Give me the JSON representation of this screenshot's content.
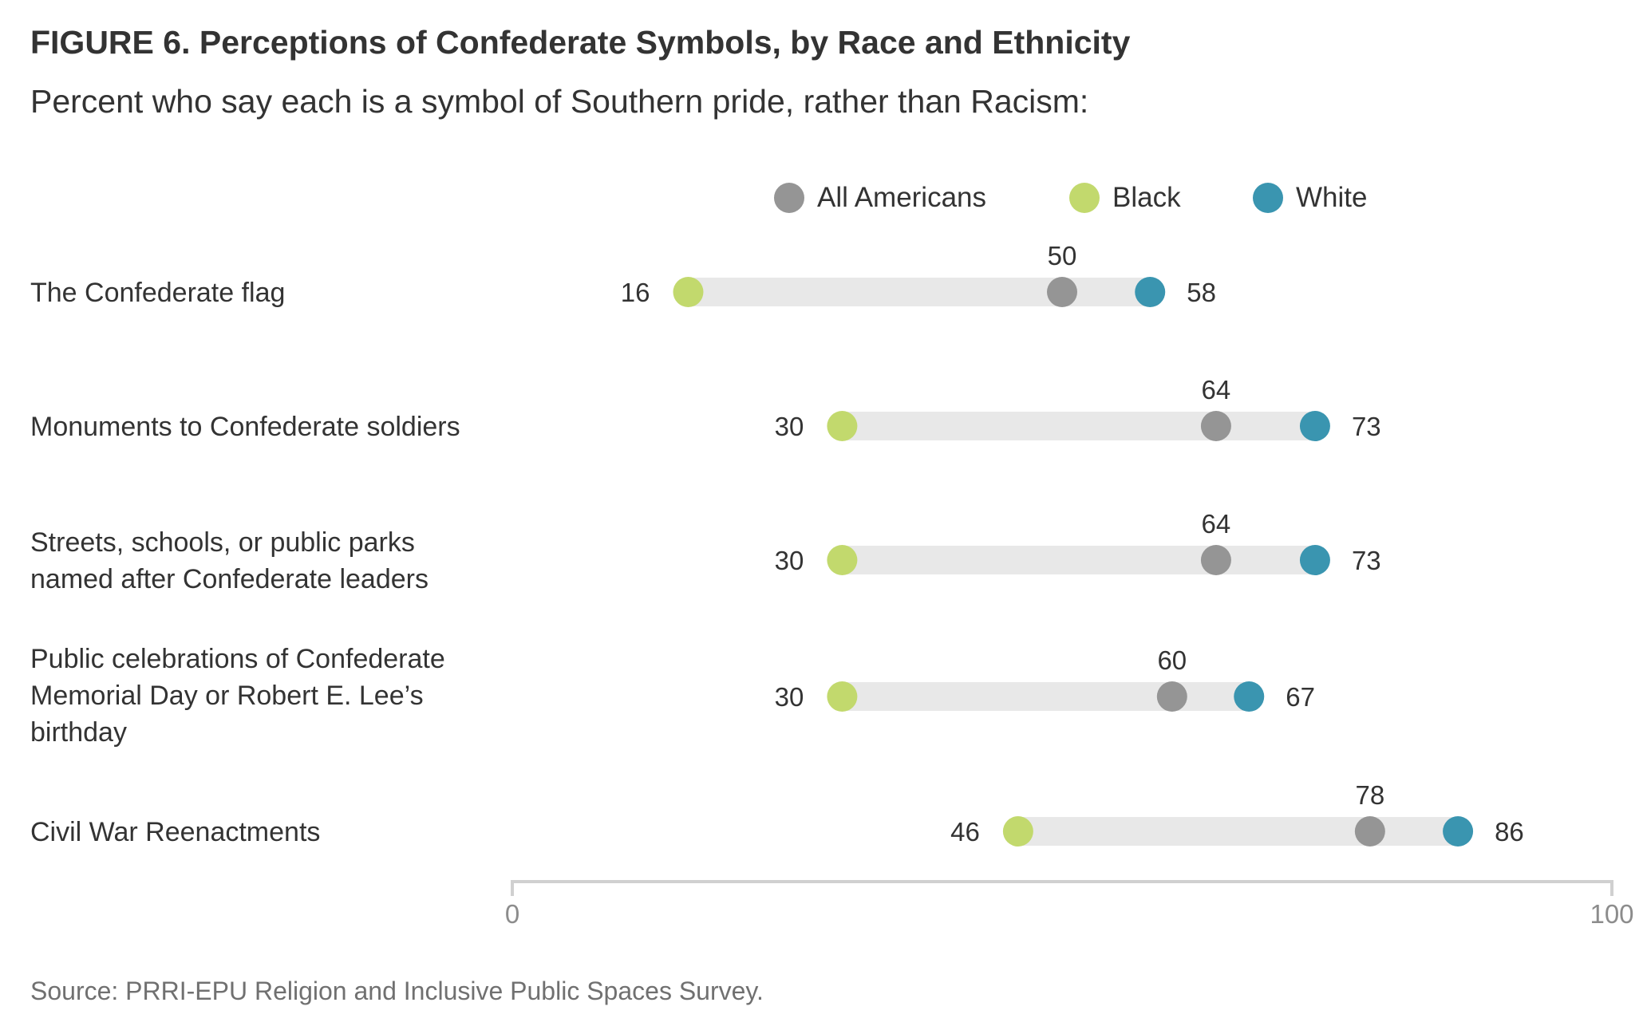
{
  "title": "FIGURE 6. Perceptions of Confederate Symbols, by Race and Ethnicity",
  "subtitle": "Percent who say each is a symbol of Southern pride, rather than Racism:",
  "source": "Source: PRRI-EPU Religion and Inclusive Public Spaces Survey.",
  "legend": [
    {
      "label": "All Americans",
      "color": "#959595"
    },
    {
      "label": "Black",
      "color": "#c2d96d"
    },
    {
      "label": "White",
      "color": "#3a95b0"
    }
  ],
  "chart_data": {
    "type": "dot-range",
    "title": "FIGURE 6. Perceptions of Confederate Symbols, by Race and Ethnicity",
    "subtitle": "Percent who say each is a symbol of Southern pride, rather than Racism:",
    "xlim": [
      0,
      100
    ],
    "x_ticks": [
      "0",
      "100"
    ],
    "grid": false,
    "legend_position": "top-center",
    "categories": [
      [
        "The Confederate flag"
      ],
      [
        "Monuments to Confederate soldiers"
      ],
      [
        "Streets, schools, or public parks",
        "named after Confederate leaders"
      ],
      [
        "Public celebrations of Confederate",
        "Memorial Day or Robert E. Lee’s",
        "birthday"
      ],
      [
        "Civil War Reenactments"
      ]
    ],
    "series": [
      {
        "name": "All Americans",
        "color": "#959595",
        "values": [
          50,
          64,
          64,
          60,
          78
        ]
      },
      {
        "name": "Black",
        "color": "#c2d96d",
        "values": [
          16,
          30,
          30,
          30,
          46
        ]
      },
      {
        "name": "White",
        "color": "#3a95b0",
        "values": [
          58,
          73,
          73,
          67,
          86
        ]
      }
    ]
  }
}
